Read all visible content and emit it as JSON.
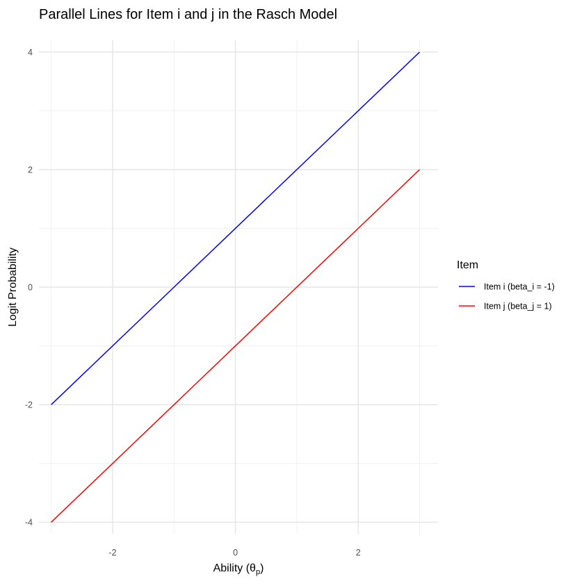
{
  "chart_data": {
    "type": "line",
    "title": "Parallel Lines for Item i and j in the Rasch Model",
    "xlabel_main": "Ability (",
    "xlabel_symbol": "θ",
    "xlabel_sub": "p",
    "xlabel_close": ")",
    "ylabel": "Logit Probability",
    "xlim": [
      -3.2,
      3.3
    ],
    "ylim": [
      -4.2,
      4.2
    ],
    "x_ticks": [
      -2,
      0,
      2
    ],
    "x_minor": [
      -3,
      -1,
      1,
      3
    ],
    "y_ticks": [
      -4,
      -2,
      0,
      2,
      4
    ],
    "y_minor": [
      -3,
      -1,
      1,
      3
    ],
    "grid": true,
    "legend": {
      "title": "Item",
      "position": "right"
    },
    "series": [
      {
        "name": "Item i (beta_i = -1)",
        "color": "#0000ff",
        "x": [
          -3,
          3
        ],
        "y": [
          -2,
          4
        ]
      },
      {
        "name": "Item j (beta_j = 1)",
        "color": "#ff0000",
        "x": [
          -3,
          3
        ],
        "y": [
          -4,
          2
        ]
      }
    ]
  }
}
